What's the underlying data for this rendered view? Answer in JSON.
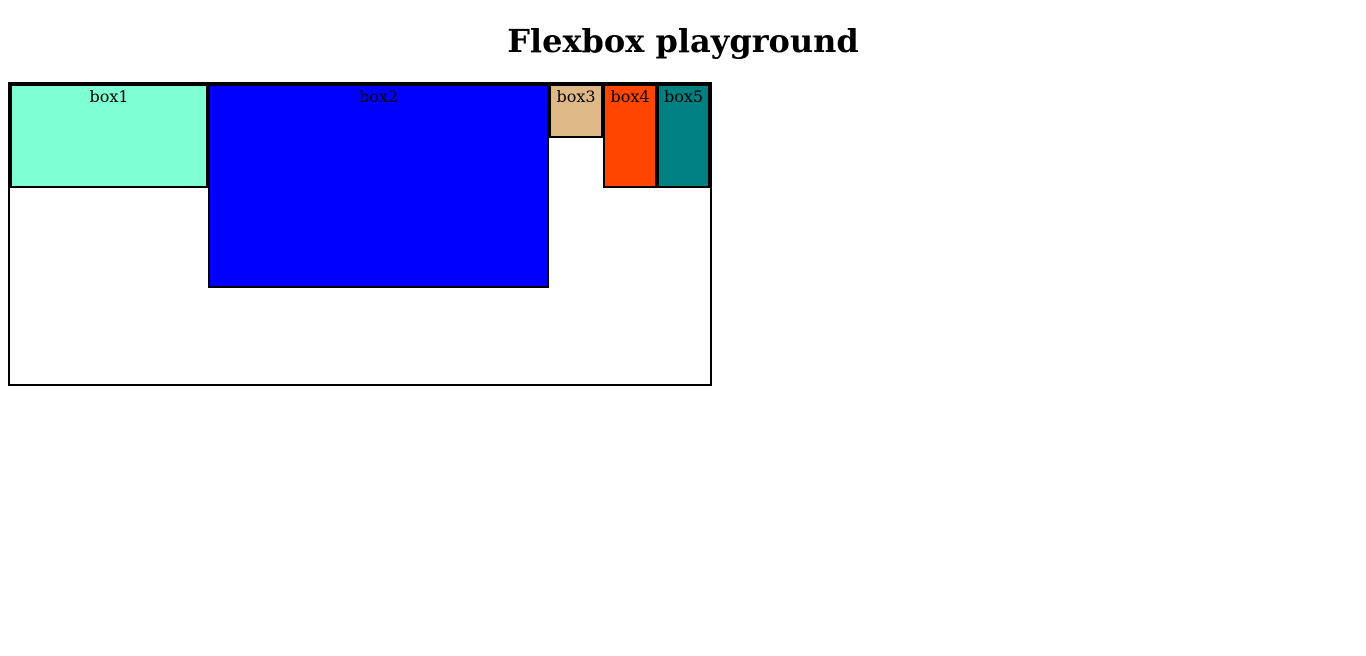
{
  "page": {
    "title": "Flexbox playground"
  },
  "boxes": [
    {
      "label": "box1",
      "color": "#7fffd4"
    },
    {
      "label": "box2",
      "color": "#0000ff"
    },
    {
      "label": "box3",
      "color": "#deb887"
    },
    {
      "label": "box4",
      "color": "#ff4500"
    },
    {
      "label": "box5",
      "color": "#008080"
    }
  ]
}
